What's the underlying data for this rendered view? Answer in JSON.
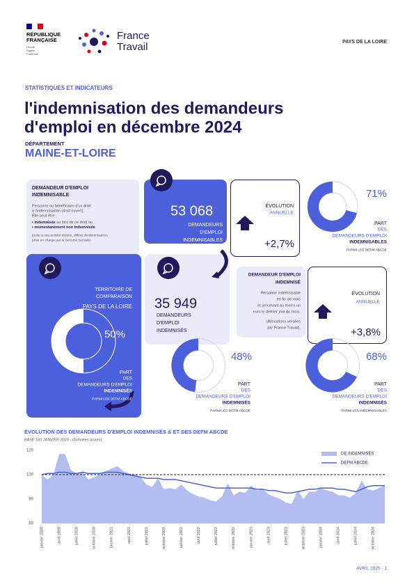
{
  "header": {
    "republic_lines": [
      "RÉPUBLIQUE",
      "FRANÇAISE"
    ],
    "motto_lines": [
      "Liberté",
      "Égalité",
      "Fraternité"
    ],
    "brand_lines": [
      "France",
      "Travail"
    ],
    "region": "PAYS DE LA LOIRE"
  },
  "kicker": "STATISTIQUES ET INDICATEURS",
  "title_lines": [
    "l'indemnisation des demandeurs",
    "d'emploi en décembre 2024"
  ],
  "department_label": "DÉPARTEMENT",
  "department": "MAINE-ET-LOIRE",
  "indemnisable_definition": {
    "title_lines": [
      "DEMANDEUR D'EMPLOI",
      "INDEMNISABLE"
    ],
    "lines": [
      "Personne ou bénéficiaire d'un droit",
      "à l'indemnisation (droit ouvert).",
      "Elle peut être :"
    ],
    "bullets": [
      {
        "bold": "• indemnisée",
        "text": " au titre de ce droit ou"
      },
      {
        "bold": "• momentanément non indemnisée"
      }
    ],
    "note_lines": [
      "(suite à une activité réduite, différé d'indemnisation,",
      "prise en charge par la Sécurité Sociale)."
    ]
  },
  "indemnisables": {
    "value": "53 068",
    "label_lines": [
      "DEMANDEURS",
      "D'EMPLOI",
      "INDEMNISABLES"
    ]
  },
  "evolution_indemnisables": {
    "title": "ÉVOLUTION",
    "period": "ANNUELLE",
    "value": "+2,7%"
  },
  "share_indemnisables": {
    "value": 71,
    "value_label": "71%",
    "label_lines": [
      "PART",
      "DES",
      "DEMANDEURS D'EMPLOI",
      "INDEMNISABLES"
    ],
    "base": "PARMI LES DEFM ABCDE"
  },
  "comparison": {
    "title_lines": [
      "TERRITOIRE DE",
      "COMPARAISON"
    ],
    "territory": "PAYS DE LA LOIRE",
    "share": {
      "value": 50,
      "value_label": "50%",
      "label_lines": [
        "PART",
        "DES",
        "DEMANDEURS D'EMPLOI",
        "INDEMNISÉS"
      ],
      "base": "PARMI LES DEFM ABCDE"
    }
  },
  "indemnises": {
    "value": "35 949",
    "label_lines": [
      "DEMANDEURS",
      "D'EMPLOI",
      "INDEMNISÉS"
    ]
  },
  "indemnise_definition": {
    "title_lines": [
      "DEMANDEUR D'EMPLOI",
      "INDEMNISÉ"
    ],
    "lines": [
      "Personne indemnisable",
      "en fin de mois",
      "et percevant au moins un",
      "euro le dernier jour du mois."
    ],
    "note_lines": [
      "(Allocations versées",
      "par France Travail)."
    ]
  },
  "evolution_indemnises": {
    "title": "ÉVOLUTION",
    "period": "ANNUELLE",
    "value": "+3,8%"
  },
  "share_indemnises": {
    "value": 48,
    "value_label": "48%",
    "label_lines": [
      "PART",
      "DES",
      "DEMANDEURS D'EMPLOI",
      "INDEMNISÉS"
    ],
    "base": "PARMI LES DEFM ABCDE"
  },
  "share_indemnises_indemnisables": {
    "value": 68,
    "value_label": "68%",
    "label_lines": [
      "PART",
      "DES",
      "DEMANDEURS D'EMPLOI",
      "INDEMNISÉS"
    ],
    "base": "PARMI LES INDEMNISABLES"
  },
  "chart_data": {
    "type": "line",
    "title": "ÉVOLUTION DES DEMANDEURS D'EMPLOI INDEMNISÉS & ET DES DEFM ABCDE",
    "subtitle": "BASE 100 JANVIER 2020 - (Données brutes)",
    "categories": [
      "janvier 2020",
      null,
      null,
      "avril 2020",
      null,
      null,
      "juillet 2020",
      null,
      null,
      "octobre 2020",
      null,
      null,
      "janvier 2021",
      null,
      null,
      "avril 2021",
      null,
      null,
      "juillet 2021",
      null,
      null,
      "octobre 2021",
      null,
      null,
      "janvier 2022",
      null,
      null,
      "avril 2022",
      null,
      null,
      "juillet 2022",
      null,
      null,
      "octobre 2022",
      null,
      null,
      "janvier 2023",
      null,
      null,
      "avril 2023",
      null,
      null,
      "juillet 2023",
      null,
      null,
      "octobre 2023",
      null,
      null,
      "janvier 2024",
      null,
      null,
      "avril 2024",
      null,
      null,
      "juillet 2024",
      null,
      null,
      "octobre 2024",
      null,
      null
    ],
    "series": [
      {
        "name": "DE INDEMNISÉS",
        "style": "area",
        "color": "#b4bdf0",
        "values": [
          100,
          96,
          100,
          117,
          117,
          104,
          101,
          102,
          96,
          98,
          100,
          103,
          105,
          107,
          103,
          101,
          100,
          98,
          92,
          90,
          97,
          88,
          89,
          88,
          92,
          87,
          84,
          82,
          81,
          79,
          78,
          82,
          93,
          83,
          86,
          85,
          91,
          87,
          88,
          84,
          82,
          80,
          77,
          76,
          87,
          80,
          86,
          86,
          89,
          87,
          86,
          83,
          83,
          81,
          85,
          95,
          88,
          87,
          89,
          91
        ]
      },
      {
        "name": "DEFM ABCDE",
        "style": "line",
        "color": "#4a63d8",
        "values": [
          100,
          101,
          101,
          102,
          102,
          101,
          101,
          102,
          101,
          101,
          101,
          102,
          102,
          102,
          101,
          100,
          99,
          98,
          97,
          97,
          97,
          96,
          96,
          96,
          95,
          94,
          93,
          92,
          91,
          90,
          89,
          89,
          89,
          89,
          89,
          89,
          89,
          88,
          88,
          87,
          87,
          86,
          85,
          85,
          86,
          87,
          88,
          88,
          89,
          89,
          89,
          88,
          88,
          87,
          86,
          88,
          90,
          91,
          91,
          91
        ]
      }
    ],
    "ylim": [
      60,
      120
    ],
    "yticks": [
      60,
      80,
      100,
      120
    ],
    "reference_line": 100,
    "grid": false,
    "legend": "top-right"
  },
  "footer": "AVRIL 2025 - 1"
}
